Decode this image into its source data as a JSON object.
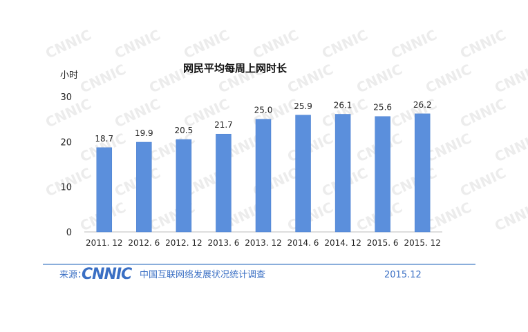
{
  "chart_data": {
    "type": "bar",
    "title": "网民平均每周上网时长",
    "ylabel": "小时",
    "xlabel": "",
    "categories": [
      "2011. 12",
      "2012. 6",
      "2012. 12",
      "2013. 6",
      "2013. 12",
      "2014. 6",
      "2014. 12",
      "2015. 6",
      "2015. 12"
    ],
    "values": [
      18.7,
      19.9,
      20.5,
      21.7,
      25.0,
      25.9,
      26.1,
      25.6,
      26.2
    ],
    "value_labels": [
      "18.7",
      "19.9",
      "20.5",
      "21.7",
      "25.0",
      "25.9",
      "26.1",
      "25.6",
      "26.2"
    ],
    "ylim": [
      0,
      30
    ],
    "yticks": [
      "0",
      "10",
      "20",
      "30"
    ],
    "ytick_values": [
      0,
      10,
      20,
      30
    ],
    "grid": false,
    "colors": {
      "bar": "#5b8fdc",
      "bar_edge": "#4a7fd0",
      "axis": "#bdbdbd",
      "text": "#222222"
    }
  },
  "footer": {
    "source_label": "来源：",
    "logo_text": "CNNIC",
    "source_name": "中国互联网络发展状况统计调查",
    "date": "2015.12",
    "colors": {
      "accent": "#3a6fc4",
      "rule": "#8aaedb"
    }
  },
  "watermark": {
    "text": "CNNIC",
    "color": "#dcdcdc"
  }
}
